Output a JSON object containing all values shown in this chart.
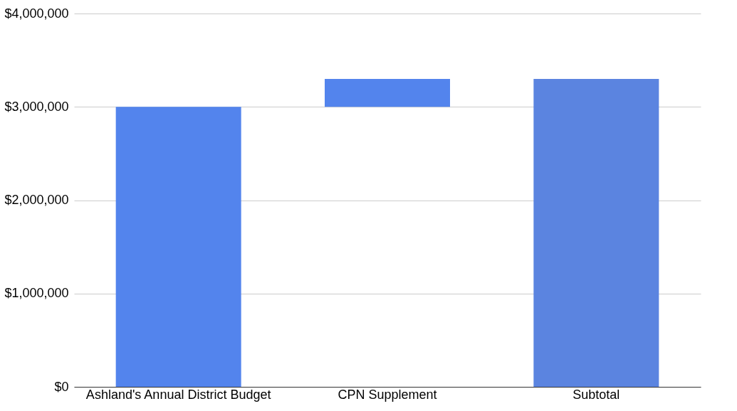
{
  "chart_data": {
    "type": "bar",
    "categories": [
      "Ashland's Annual District Budget",
      "CPN Supplement",
      "Subtotal"
    ],
    "values": [
      3000000,
      300000,
      3300000
    ],
    "base": [
      0,
      3000000,
      0
    ],
    "colors": [
      "#5384ed",
      "#5384ed",
      "#5b84e0"
    ],
    "ylim": [
      0,
      4000000
    ],
    "yticks": [
      {
        "value": 0,
        "label": "$0"
      },
      {
        "value": 1000000,
        "label": "$1,000,000"
      },
      {
        "value": 2000000,
        "label": "$2,000,000"
      },
      {
        "value": 3000000,
        "label": "$3,000,000"
      },
      {
        "value": 4000000,
        "label": "$4,000,000"
      }
    ],
    "grid": "y"
  }
}
